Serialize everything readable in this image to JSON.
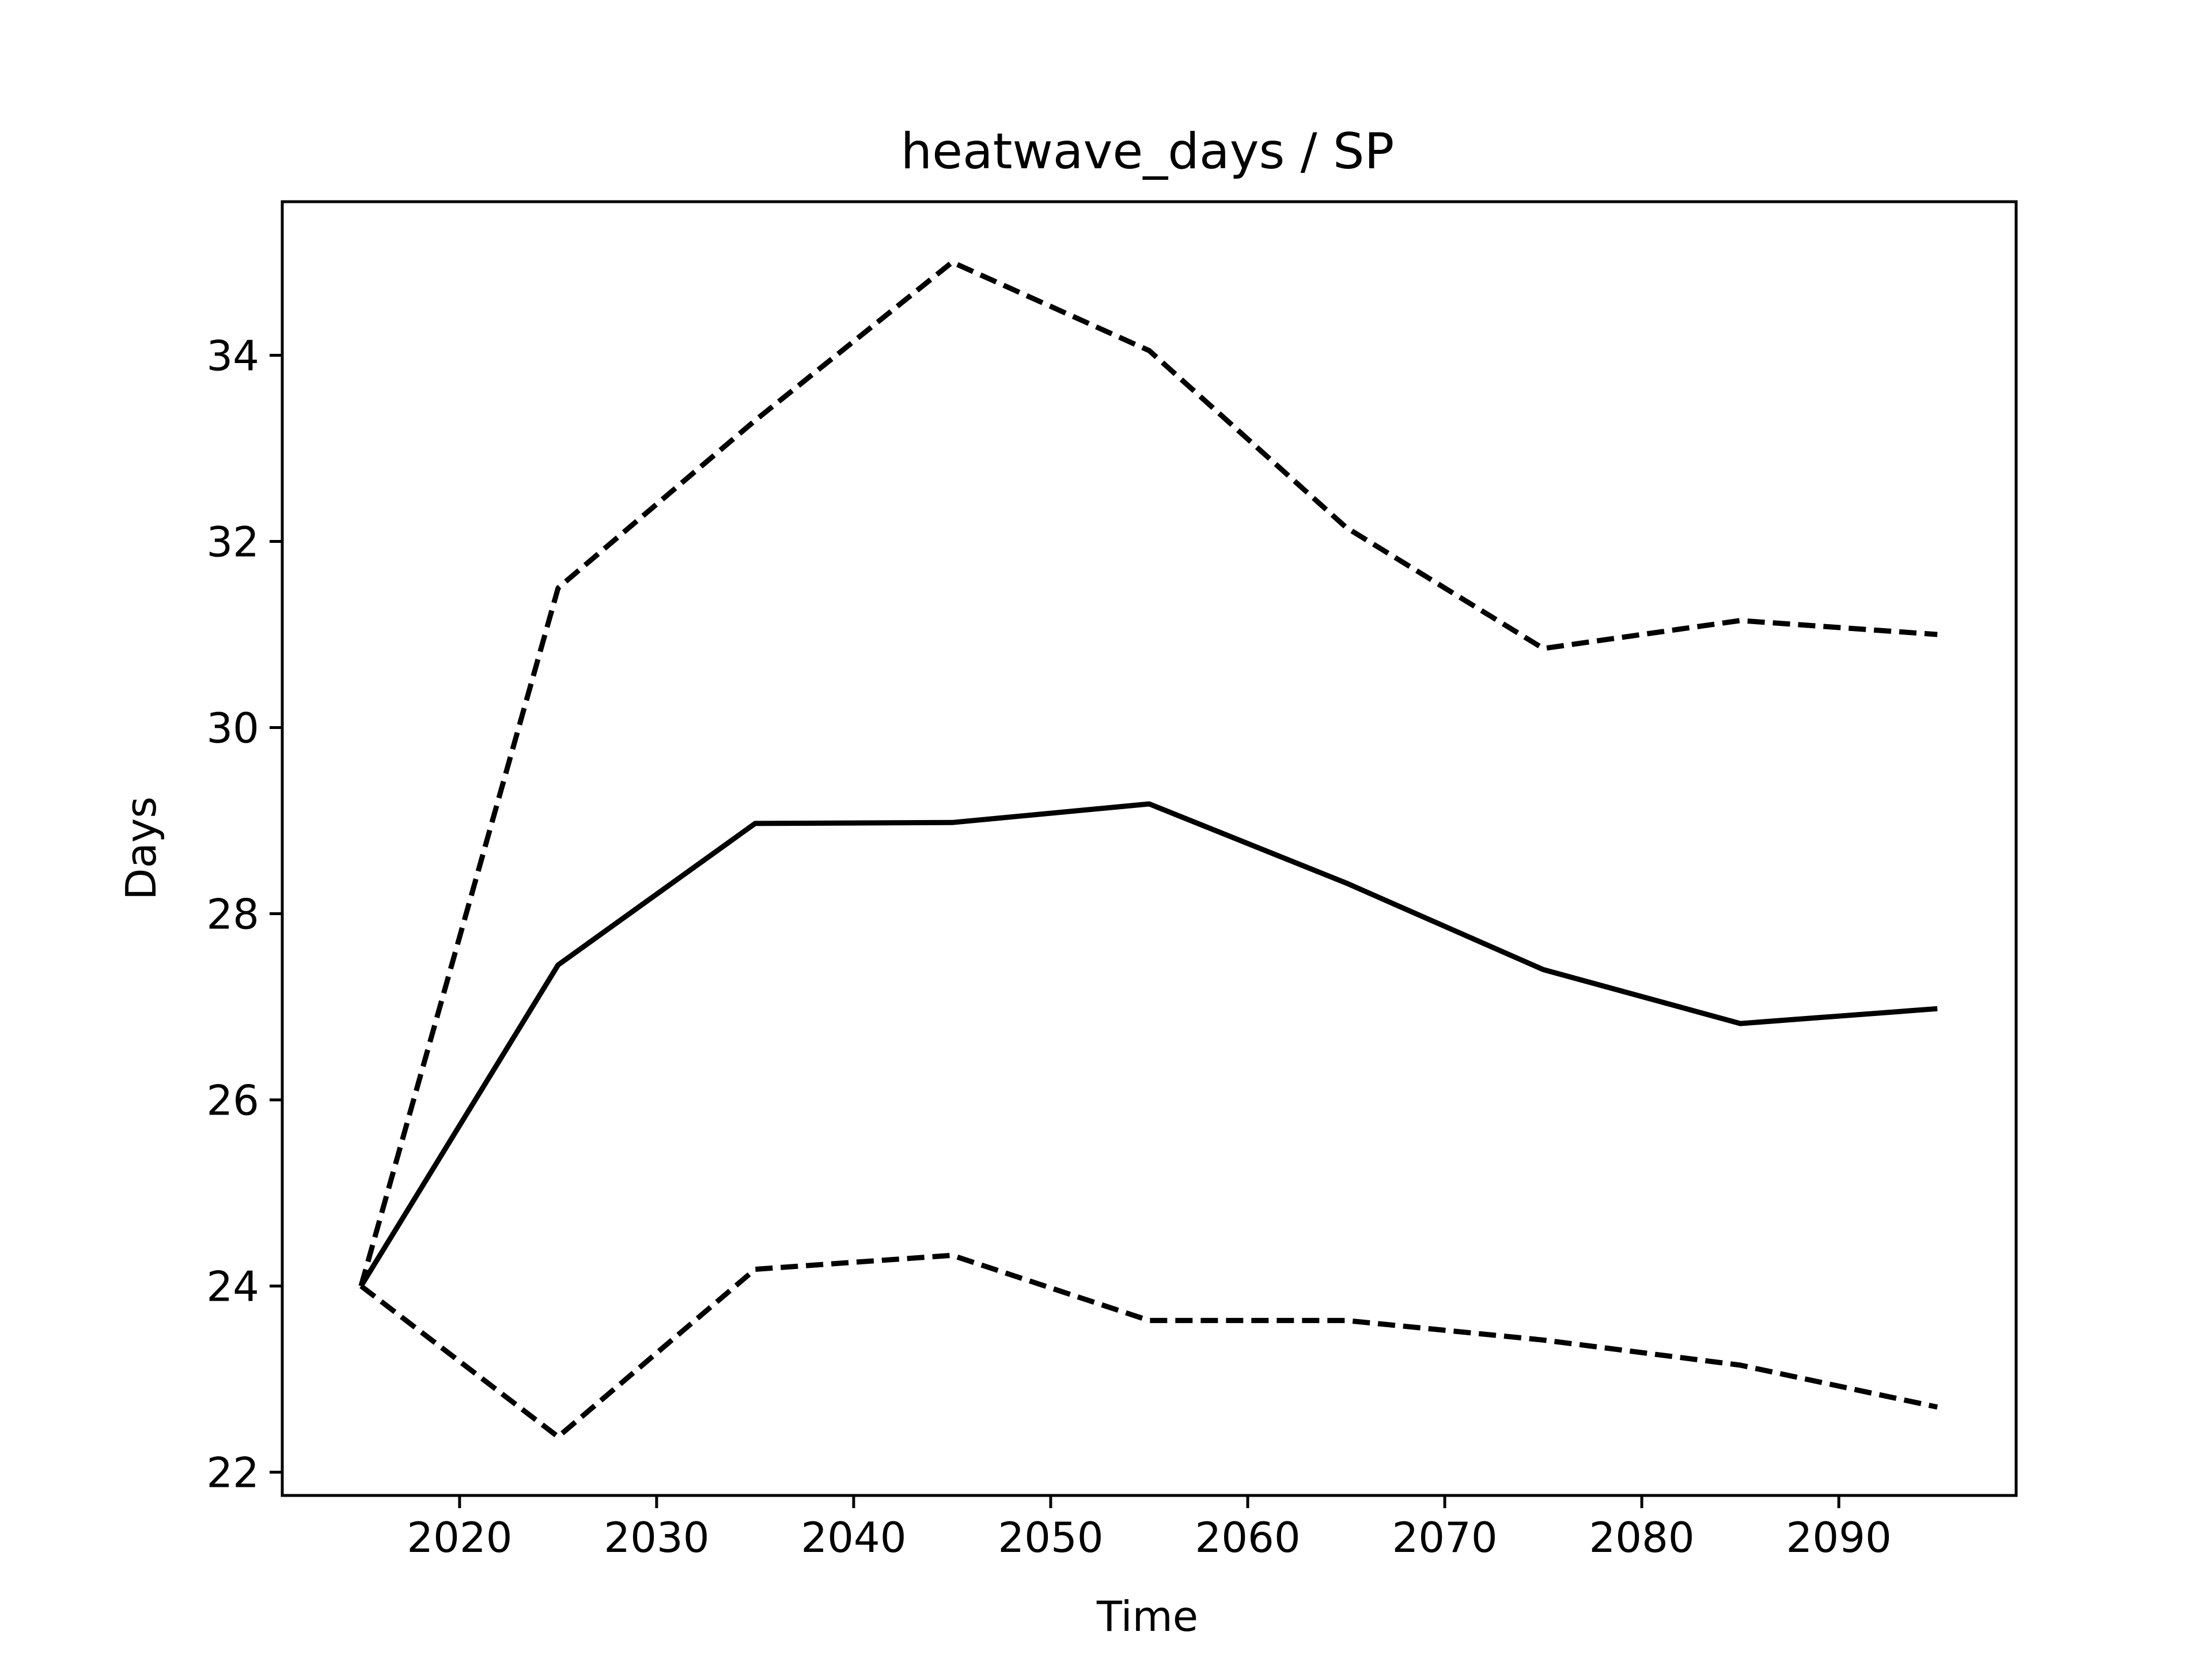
{
  "chart_data": {
    "type": "line",
    "title": "heatwave_days / SP",
    "xlabel": "Time",
    "ylabel": "Days",
    "x": [
      2015,
      2025,
      2035,
      2045,
      2055,
      2065,
      2075,
      2085,
      2095
    ],
    "xlim": [
      2011,
      2099
    ],
    "ylim": [
      21.75,
      35.65
    ],
    "xticks": [
      2020,
      2030,
      2040,
      2050,
      2060,
      2070,
      2080,
      2090
    ],
    "yticks": [
      22,
      24,
      26,
      28,
      30,
      32,
      34
    ],
    "grid": false,
    "legend": false,
    "series": [
      {
        "style": "dashed",
        "color": "#000000",
        "values": [
          24.0,
          31.5,
          33.3,
          35.0,
          34.05,
          32.15,
          30.85,
          31.15,
          31.0
        ]
      },
      {
        "style": "solid",
        "color": "#000000",
        "values": [
          24.0,
          27.45,
          28.97,
          28.98,
          29.18,
          28.33,
          27.4,
          26.82,
          26.98
        ]
      },
      {
        "style": "dashed",
        "color": "#000000",
        "values": [
          24.0,
          22.38,
          24.18,
          24.33,
          23.63,
          23.63,
          23.42,
          23.15,
          22.7
        ]
      }
    ]
  }
}
